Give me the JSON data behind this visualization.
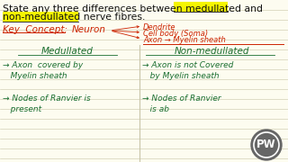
{
  "bg_color": "#fdfcf0",
  "line_color": "#c8c5a8",
  "red_color": "#cc2200",
  "green_color": "#1a6e30",
  "black_color": "#111111",
  "yellow_highlight": "#f5f500",
  "title_line1": "State any three differences between medullated and",
  "title_line2": "non-medullated nerve fibres.",
  "title_fontsize": 7.8,
  "key_label": "Key  Concept:",
  "neuron_label": "Neuron",
  "neuron_parts": [
    "Dendrite",
    "Cell body (Soma)",
    "Axon → Myelin sheath"
  ],
  "col_left": "Medullated",
  "col_right": "Non-medullated",
  "left_points": [
    "→ Axon  covered by\n   Myelin sheath",
    "→ Nodes of Ranvier is\n   present"
  ],
  "right_points": [
    "→ Axon is not Covered\n   by Myelin sheath",
    "→ Nodes of Ranvier\n   is ab"
  ],
  "body_fontsize": 6.5,
  "header_fontsize": 7.5,
  "pw_circle_color": "#555555"
}
